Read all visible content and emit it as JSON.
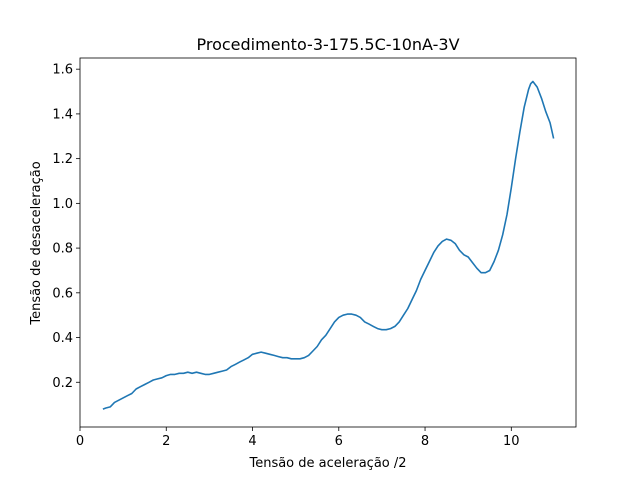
{
  "chart_data": {
    "type": "line",
    "title": "Procedimento-3-175.5C-10nA-3V",
    "xlabel": "Tensão de aceleração /2",
    "ylabel": "Tensão de desaceleração",
    "xlim": [
      0,
      11.5
    ],
    "ylim": [
      0,
      1.65
    ],
    "xticks": [
      0,
      2,
      4,
      6,
      8,
      10
    ],
    "yticks": [
      0.2,
      0.4,
      0.6,
      0.8,
      1.0,
      1.2,
      1.4,
      1.6
    ],
    "xtick_labels": [
      "0",
      "2",
      "4",
      "6",
      "8",
      "10"
    ],
    "ytick_labels": [
      "0.2",
      "0.4",
      "0.6",
      "0.8",
      "1.0",
      "1.2",
      "1.4",
      "1.6"
    ],
    "grid": false,
    "series": [
      {
        "color": "#1f77b4",
        "x": [
          0.53,
          0.6,
          0.7,
          0.8,
          0.9,
          1.0,
          1.1,
          1.2,
          1.3,
          1.4,
          1.5,
          1.6,
          1.7,
          1.8,
          1.9,
          2.0,
          2.1,
          2.2,
          2.3,
          2.4,
          2.5,
          2.6,
          2.7,
          2.8,
          2.9,
          3.0,
          3.1,
          3.2,
          3.3,
          3.4,
          3.5,
          3.6,
          3.7,
          3.8,
          3.9,
          4.0,
          4.1,
          4.2,
          4.3,
          4.4,
          4.5,
          4.6,
          4.7,
          4.8,
          4.9,
          5.0,
          5.1,
          5.2,
          5.3,
          5.4,
          5.5,
          5.6,
          5.7,
          5.8,
          5.9,
          6.0,
          6.1,
          6.2,
          6.3,
          6.4,
          6.5,
          6.6,
          6.7,
          6.8,
          6.9,
          7.0,
          7.1,
          7.2,
          7.3,
          7.4,
          7.5,
          7.6,
          7.7,
          7.8,
          7.9,
          8.0,
          8.1,
          8.2,
          8.3,
          8.4,
          8.5,
          8.6,
          8.7,
          8.8,
          8.9,
          9.0,
          9.1,
          9.2,
          9.3,
          9.4,
          9.5,
          9.6,
          9.7,
          9.8,
          9.9,
          10.0,
          10.1,
          10.2,
          10.3,
          10.4,
          10.45,
          10.5,
          10.6,
          10.7,
          10.8,
          10.9,
          10.98
        ],
        "y": [
          0.08,
          0.085,
          0.09,
          0.11,
          0.12,
          0.13,
          0.14,
          0.15,
          0.17,
          0.18,
          0.19,
          0.2,
          0.21,
          0.215,
          0.22,
          0.23,
          0.235,
          0.235,
          0.24,
          0.24,
          0.245,
          0.24,
          0.245,
          0.24,
          0.235,
          0.235,
          0.24,
          0.245,
          0.25,
          0.255,
          0.27,
          0.28,
          0.29,
          0.3,
          0.31,
          0.325,
          0.33,
          0.335,
          0.33,
          0.325,
          0.32,
          0.315,
          0.31,
          0.31,
          0.305,
          0.305,
          0.305,
          0.31,
          0.32,
          0.34,
          0.36,
          0.39,
          0.41,
          0.44,
          0.47,
          0.49,
          0.5,
          0.505,
          0.505,
          0.5,
          0.49,
          0.47,
          0.46,
          0.45,
          0.44,
          0.435,
          0.435,
          0.44,
          0.45,
          0.47,
          0.5,
          0.53,
          0.57,
          0.61,
          0.66,
          0.7,
          0.74,
          0.78,
          0.81,
          0.83,
          0.84,
          0.835,
          0.82,
          0.79,
          0.77,
          0.76,
          0.735,
          0.71,
          0.69,
          0.69,
          0.7,
          0.74,
          0.79,
          0.86,
          0.95,
          1.07,
          1.2,
          1.32,
          1.43,
          1.51,
          1.535,
          1.545,
          1.52,
          1.47,
          1.41,
          1.36,
          1.29
        ]
      }
    ]
  }
}
